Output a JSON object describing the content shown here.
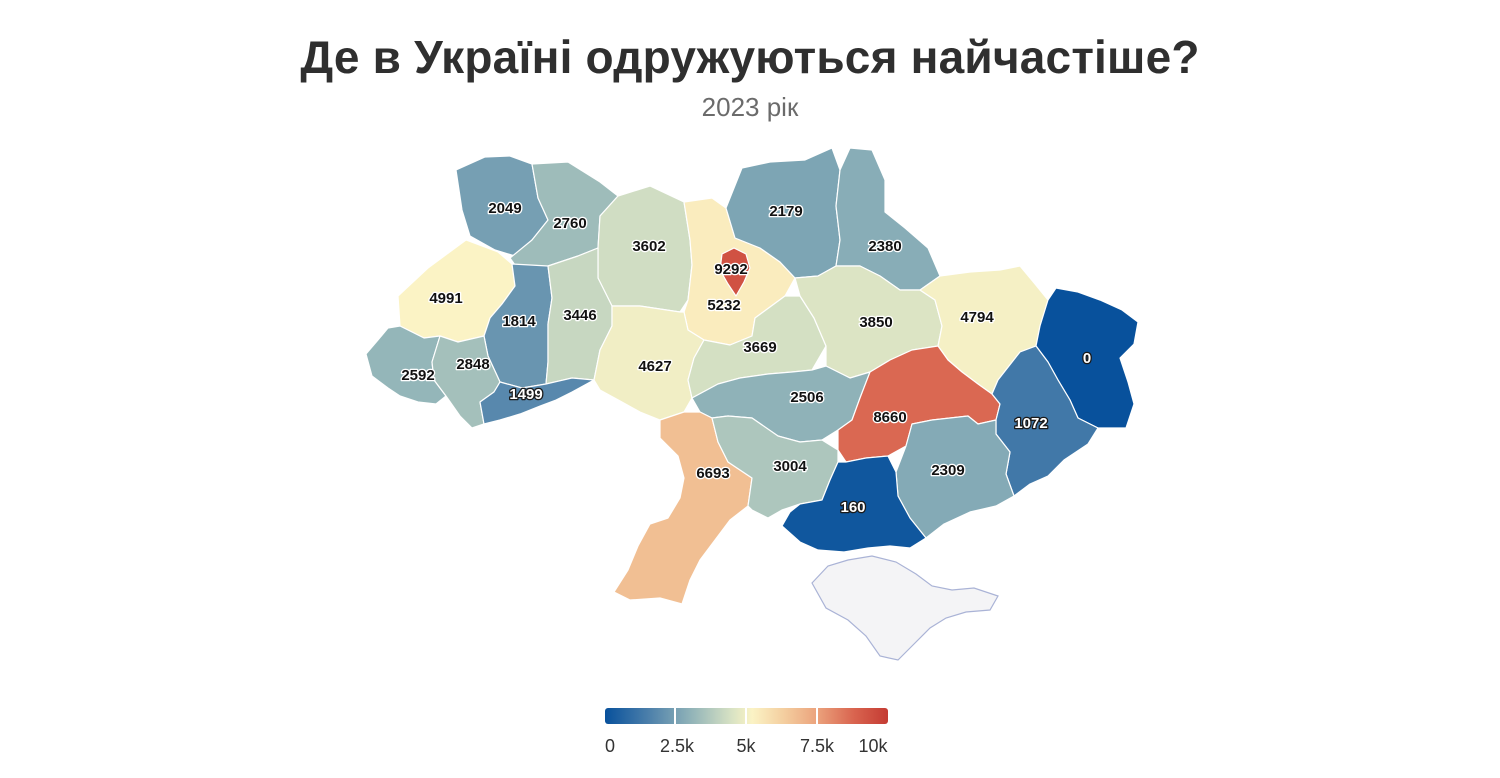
{
  "title": "Де в Україні одружуються найчастіше?",
  "subtitle": "2023 рік",
  "colors": {
    "scale": [
      "#08519c",
      "#4a7eaa",
      "#8fb2b8",
      "#d9e3c4",
      "#fbf3c5",
      "#f4cfa0",
      "#eba27c",
      "#d9644f",
      "#c43b33"
    ],
    "no_data": "#f4f4f6"
  },
  "legend": {
    "min": 0,
    "max": 10000,
    "labels": [
      "0",
      "2.5k",
      "5k",
      "7.5k",
      "10k"
    ]
  },
  "regions": [
    {
      "id": "volyn",
      "value": 2049,
      "label": "2049"
    },
    {
      "id": "rivne",
      "value": 2760,
      "label": "2760"
    },
    {
      "id": "zhytomyr",
      "value": 3602,
      "label": "3602"
    },
    {
      "id": "kyiv-city",
      "value": 9292,
      "label": "9292"
    },
    {
      "id": "kyiv-oblast",
      "value": 5232,
      "label": "5232"
    },
    {
      "id": "chernihiv",
      "value": 2179,
      "label": "2179"
    },
    {
      "id": "sumy",
      "value": 2380,
      "label": "2380"
    },
    {
      "id": "lviv",
      "value": 4991,
      "label": "4991"
    },
    {
      "id": "ternopil",
      "value": 1814,
      "label": "1814"
    },
    {
      "id": "khmelnytskyi",
      "value": 3446,
      "label": "3446"
    },
    {
      "id": "vinnytsia",
      "value": 4627,
      "label": "4627"
    },
    {
      "id": "cherkasy",
      "value": 3669,
      "label": "3669"
    },
    {
      "id": "poltava",
      "value": 3850,
      "label": "3850"
    },
    {
      "id": "kharkiv",
      "value": 4794,
      "label": "4794"
    },
    {
      "id": "luhansk",
      "value": 0,
      "label": "0"
    },
    {
      "id": "zakarpattia",
      "value": 2592,
      "label": "2592"
    },
    {
      "id": "ivano-frankivsk",
      "value": 2848,
      "label": "2848"
    },
    {
      "id": "chernivtsi",
      "value": 1499,
      "label": "1499"
    },
    {
      "id": "kirovohrad",
      "value": 2506,
      "label": "2506"
    },
    {
      "id": "dnipropetrovsk",
      "value": 8660,
      "label": "8660"
    },
    {
      "id": "donetsk",
      "value": 1072,
      "label": "1072"
    },
    {
      "id": "odesa",
      "value": 6693,
      "label": "6693"
    },
    {
      "id": "mykolaiv",
      "value": 3004,
      "label": "3004"
    },
    {
      "id": "zaporizhzhia",
      "value": 2309,
      "label": "2309"
    },
    {
      "id": "kherson",
      "value": 160,
      "label": "160"
    }
  ]
}
